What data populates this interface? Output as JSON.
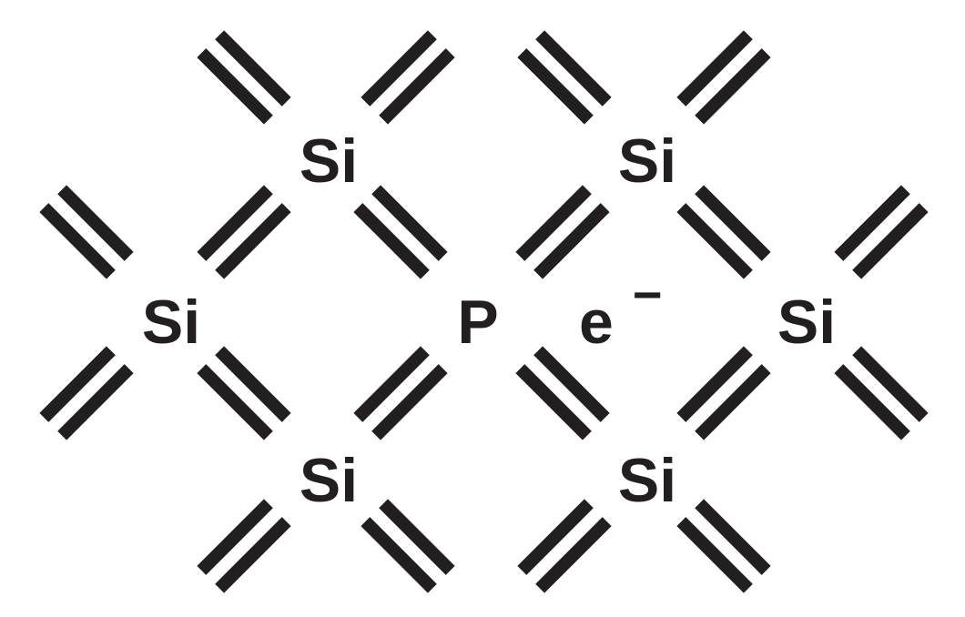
{
  "diagram": {
    "atoms": [
      {
        "id": "si-top-left",
        "label": "Si"
      },
      {
        "id": "si-top-right",
        "label": "Si"
      },
      {
        "id": "si-mid-left",
        "label": "Si"
      },
      {
        "id": "p-center",
        "label": "P"
      },
      {
        "id": "si-mid-right",
        "label": "Si"
      },
      {
        "id": "si-bottom-left",
        "label": "Si"
      },
      {
        "id": "si-bottom-right",
        "label": "Si"
      }
    ],
    "free_electron": {
      "base": "e",
      "charge": "−"
    }
  },
  "colors": {
    "ink": "#231f20",
    "background": "#ffffff"
  }
}
